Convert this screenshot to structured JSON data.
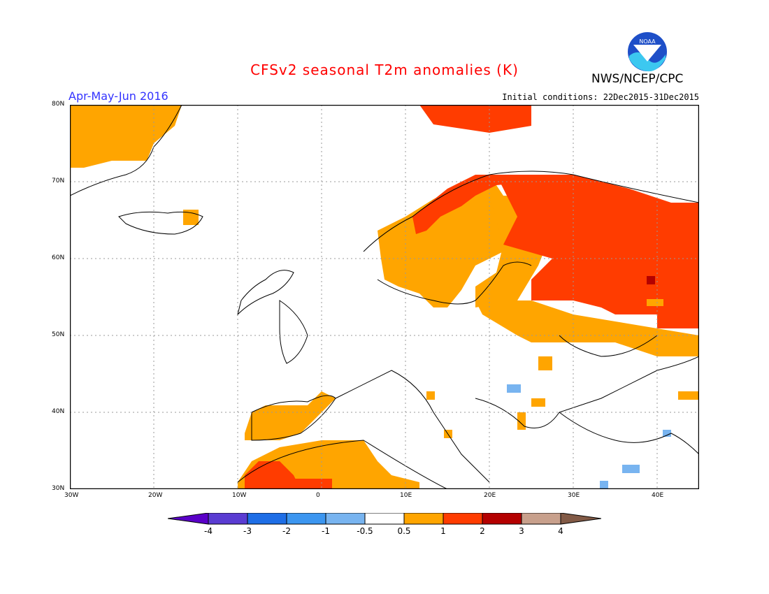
{
  "header": {
    "title": "CFSv2 seasonal T2m anomalies (K)",
    "period": "Apr-May-Jun 2016",
    "initial_conditions": "Initial conditions: 22Dec2015-31Dec2015",
    "agency": "NWS/NCEP/CPC",
    "logo_icon": "noaa-logo-icon"
  },
  "map": {
    "lon_range": [
      -30,
      45
    ],
    "lat_range": [
      30,
      80
    ],
    "lon_ticks": [
      {
        "value": -30,
        "label": "30W"
      },
      {
        "value": -20,
        "label": "20W"
      },
      {
        "value": -10,
        "label": "10W"
      },
      {
        "value": 0,
        "label": "0"
      },
      {
        "value": 10,
        "label": "10E"
      },
      {
        "value": 20,
        "label": "20E"
      },
      {
        "value": 30,
        "label": "30E"
      },
      {
        "value": 40,
        "label": "40E"
      }
    ],
    "lat_ticks": [
      {
        "value": 30,
        "label": "30N"
      },
      {
        "value": 40,
        "label": "40N"
      },
      {
        "value": 50,
        "label": "50N"
      },
      {
        "value": 60,
        "label": "60N"
      },
      {
        "value": 70,
        "label": "70N"
      },
      {
        "value": 80,
        "label": "80N"
      }
    ],
    "grid": true,
    "region_colors": {
      "anom_0_5_to_1": "#ffa500",
      "anom_1_to_2": "#ff3c00",
      "anom_2_to_3": "#b40000",
      "anom_neg_1_to_neg_0_5": "#78b4f0"
    }
  },
  "colorbar": {
    "labels": [
      "-4",
      "-3",
      "-2",
      "-1",
      "-0.5",
      "0.5",
      "1",
      "2",
      "3",
      "4"
    ],
    "colors": [
      "#5a00c8",
      "#5a3cd2",
      "#1e6ee6",
      "#3c96f0",
      "#78b4f0",
      "#ffffff",
      "#ffa500",
      "#ff3c00",
      "#b40000",
      "#c8a08c",
      "#825a46"
    ]
  }
}
